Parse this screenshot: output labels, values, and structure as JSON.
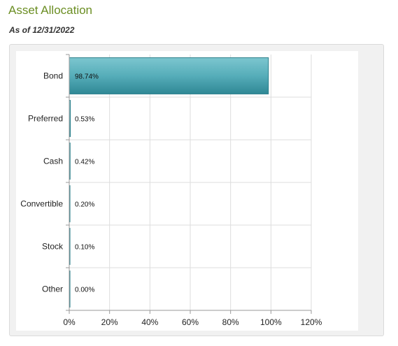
{
  "header": {
    "title": "Asset Allocation",
    "as_of": "As of 12/31/2022"
  },
  "chart_data": {
    "type": "bar",
    "orientation": "horizontal",
    "categories": [
      "Bond",
      "Preferred",
      "Cash",
      "Convertible",
      "Stock",
      "Other"
    ],
    "values": [
      98.74,
      0.53,
      0.42,
      0.2,
      0.1,
      0.0
    ],
    "value_labels": [
      "98.74%",
      "0.53%",
      "0.42%",
      "0.20%",
      "0.10%",
      "0.00%"
    ],
    "xlim": [
      0,
      120
    ],
    "xticks": [
      0,
      20,
      40,
      60,
      80,
      100,
      120
    ],
    "xtick_labels": [
      "0%",
      "20%",
      "40%",
      "60%",
      "80%",
      "100%",
      "120%"
    ],
    "grid": true,
    "bar_color": "#4aa3b0"
  }
}
